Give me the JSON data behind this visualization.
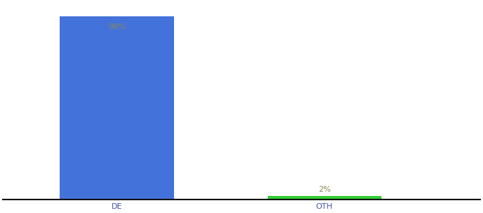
{
  "categories": [
    "DE",
    "OTH"
  ],
  "values": [
    98,
    2
  ],
  "bar_colors": [
    "#4472db",
    "#33cc33"
  ],
  "label_colors": [
    "#888855",
    "#888855"
  ],
  "labels": [
    "98%",
    "2%"
  ],
  "ylim": [
    0,
    105
  ],
  "background_color": "#ffffff",
  "axis_line_color": "#111111",
  "tick_label_color": "#4455aa",
  "tick_label_fontsize": 8,
  "label_fontsize": 8,
  "bar_width": 0.55,
  "x_positions": [
    0,
    1
  ],
  "xlim": [
    -0.55,
    1.75
  ]
}
